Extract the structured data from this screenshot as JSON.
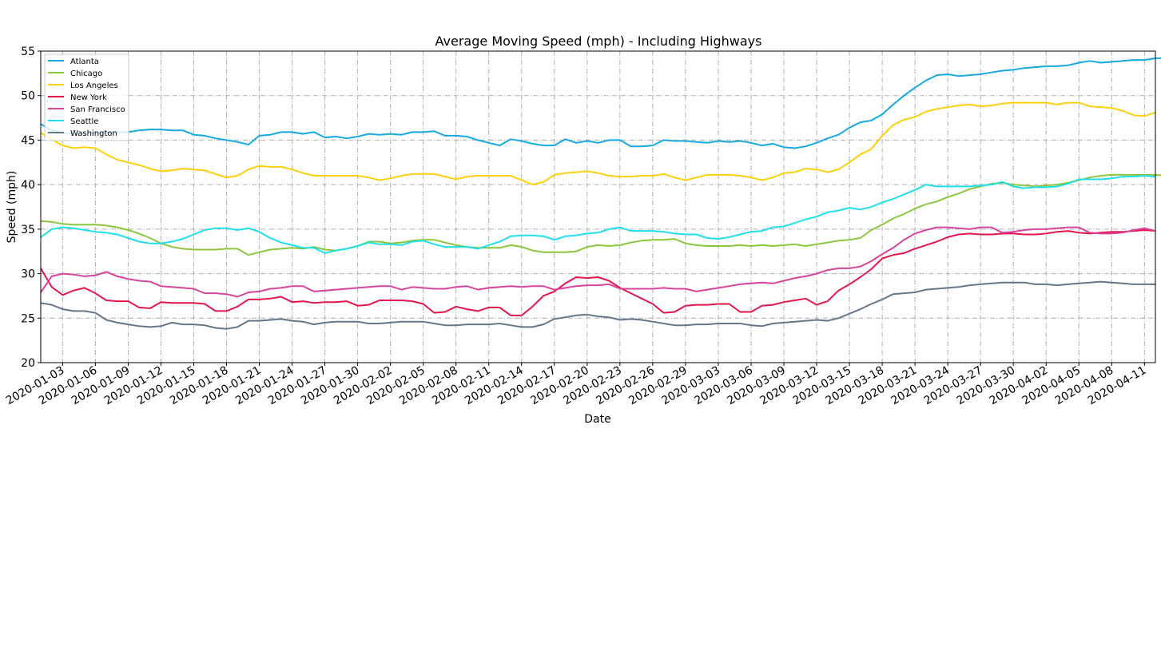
{
  "chart_data": {
    "type": "line",
    "title": "Average Moving Speed (mph) - Including Highways",
    "xlabel": "Date",
    "ylabel": "Speed (mph)",
    "ylim": [
      20,
      55
    ],
    "yticks": [
      20,
      25,
      30,
      35,
      40,
      45,
      50,
      55
    ],
    "xlim": [
      "2020-01-01",
      "2020-04-12"
    ],
    "xtick_labels": [
      "2020-01-03",
      "2020-01-06",
      "2020-01-09",
      "2020-01-12",
      "2020-01-15",
      "2020-01-18",
      "2020-01-21",
      "2020-01-24",
      "2020-01-27",
      "2020-01-30",
      "2020-02-02",
      "2020-02-05",
      "2020-02-08",
      "2020-02-11",
      "2020-02-14",
      "2020-02-17",
      "2020-02-20",
      "2020-02-23",
      "2020-02-26",
      "2020-02-29",
      "2020-03-03",
      "2020-03-06",
      "2020-03-09",
      "2020-03-12",
      "2020-03-15",
      "2020-03-18",
      "2020-03-21",
      "2020-03-24",
      "2020-03-27",
      "2020-03-30",
      "2020-04-02",
      "2020-04-05",
      "2020-04-08",
      "2020-04-11"
    ],
    "grid": true,
    "legend_position": "upper left",
    "x_start": "2020-01-01",
    "x_step_days": 1,
    "series": [
      {
        "name": "Atlanta",
        "color": "#16a9e2",
        "values": [
          46.8,
          46.1,
          45.8,
          45.7,
          45.7,
          45.8,
          45.8,
          45.9,
          45.9,
          46.1,
          46.2,
          46.2,
          46.1,
          46.1,
          45.6,
          45.5,
          45.2,
          45.0,
          44.8,
          44.5,
          45.5,
          45.6,
          45.9,
          45.9,
          45.7,
          45.9,
          45.3,
          45.4,
          45.2,
          45.4,
          45.7,
          45.6,
          45.7,
          45.6,
          45.9,
          45.9,
          46.0,
          45.5,
          45.5,
          45.4,
          45.0,
          44.7,
          44.4,
          45.1,
          44.9,
          44.6,
          44.4,
          44.4,
          45.1,
          44.7,
          44.9,
          44.7,
          45.0,
          45.0,
          44.3,
          44.3,
          44.4,
          45.0,
          44.9,
          44.9,
          44.8,
          44.7,
          44.9,
          44.8,
          44.9,
          44.7,
          44.4,
          44.6,
          44.2,
          44.1,
          44.3,
          44.7,
          45.2,
          45.6,
          46.4,
          47.0,
          47.2,
          47.9,
          49.0,
          50.0,
          50.9,
          51.7,
          52.3,
          52.4,
          52.2,
          52.3,
          52.4,
          52.6,
          52.8,
          52.9,
          53.1,
          53.2,
          53.3,
          53.3,
          53.4,
          53.7,
          53.9,
          53.7,
          53.8,
          53.9,
          54.0,
          54.0,
          54.2,
          54.2,
          53.9
        ]
      },
      {
        "name": "Chicago",
        "color": "#8cc63e",
        "values": [
          35.9,
          35.8,
          35.6,
          35.5,
          35.5,
          35.5,
          35.4,
          35.2,
          34.9,
          34.5,
          34.0,
          33.4,
          33.0,
          32.8,
          32.7,
          32.7,
          32.7,
          32.8,
          32.8,
          32.1,
          32.4,
          32.7,
          32.8,
          32.9,
          32.8,
          33.0,
          32.7,
          32.6,
          32.8,
          33.1,
          33.6,
          33.6,
          33.4,
          33.5,
          33.7,
          33.8,
          33.8,
          33.5,
          33.2,
          33.0,
          32.9,
          32.9,
          32.9,
          33.2,
          33.0,
          32.6,
          32.4,
          32.4,
          32.4,
          32.5,
          33.0,
          33.2,
          33.1,
          33.2,
          33.5,
          33.7,
          33.8,
          33.8,
          33.9,
          33.4,
          33.2,
          33.1,
          33.1,
          33.1,
          33.2,
          33.1,
          33.2,
          33.1,
          33.2,
          33.3,
          33.1,
          33.3,
          33.5,
          33.7,
          33.8,
          34.0,
          34.9,
          35.5,
          36.2,
          36.7,
          37.3,
          37.8,
          38.1,
          38.6,
          39.0,
          39.5,
          39.8,
          40.1,
          40.2,
          40.0,
          39.9,
          39.8,
          39.9,
          40.0,
          40.2,
          40.5,
          40.8,
          41.0,
          41.1,
          41.1,
          41.1,
          41.1,
          41.1,
          41.0,
          41.1
        ]
      },
      {
        "name": "Los Angeles",
        "color": "#fbd10d",
        "values": [
          45.8,
          45.1,
          44.4,
          44.1,
          44.2,
          44.1,
          43.4,
          42.8,
          42.5,
          42.2,
          41.8,
          41.5,
          41.6,
          41.8,
          41.7,
          41.6,
          41.2,
          40.8,
          41.0,
          41.7,
          42.1,
          42.0,
          42.0,
          41.7,
          41.3,
          41.0,
          41.0,
          41.0,
          41.0,
          41.0,
          40.8,
          40.5,
          40.7,
          41.0,
          41.2,
          41.2,
          41.2,
          40.9,
          40.6,
          40.9,
          41.0,
          41.0,
          41.0,
          41.0,
          40.5,
          40.0,
          40.3,
          41.1,
          41.3,
          41.4,
          41.5,
          41.3,
          41.0,
          40.9,
          40.9,
          41.0,
          41.0,
          41.2,
          40.8,
          40.5,
          40.8,
          41.1,
          41.1,
          41.1,
          41.0,
          40.8,
          40.5,
          40.8,
          41.3,
          41.4,
          41.8,
          41.7,
          41.4,
          41.7,
          42.5,
          43.4,
          44.0,
          45.5,
          46.7,
          47.3,
          47.6,
          48.2,
          48.5,
          48.7,
          48.9,
          49.0,
          48.8,
          48.9,
          49.1,
          49.2,
          49.2,
          49.2,
          49.2,
          49.0,
          49.2,
          49.2,
          48.8,
          48.7,
          48.6,
          48.3,
          47.8,
          47.7,
          48.1
        ]
      },
      {
        "name": "New York",
        "color": "#e4164d",
        "values": [
          30.6,
          28.5,
          27.6,
          28.1,
          28.4,
          27.8,
          27.0,
          26.9,
          26.9,
          26.2,
          26.1,
          26.8,
          26.7,
          26.7,
          26.7,
          26.6,
          25.8,
          25.8,
          26.3,
          27.1,
          27.1,
          27.2,
          27.4,
          26.8,
          26.9,
          26.7,
          26.8,
          26.8,
          26.9,
          26.4,
          26.5,
          27.0,
          27.0,
          27.0,
          26.9,
          26.6,
          25.6,
          25.7,
          26.3,
          26.0,
          25.8,
          26.2,
          26.2,
          25.3,
          25.3,
          26.3,
          27.5,
          28.0,
          28.9,
          29.6,
          29.5,
          29.6,
          29.2,
          28.4,
          27.8,
          27.2,
          26.6,
          25.6,
          25.7,
          26.4,
          26.5,
          26.5,
          26.6,
          26.6,
          25.7,
          25.7,
          26.4,
          26.5,
          26.8,
          27.0,
          27.2,
          26.5,
          26.9,
          28.1,
          28.8,
          29.6,
          30.5,
          31.7,
          32.1,
          32.3,
          32.8,
          33.2,
          33.6,
          34.1,
          34.4,
          34.5,
          34.4,
          34.4,
          34.5,
          34.5,
          34.4,
          34.4,
          34.5,
          34.7,
          34.8,
          34.6,
          34.5,
          34.6,
          34.7,
          34.7,
          34.8,
          34.9,
          34.8
        ]
      },
      {
        "name": "San Francisco",
        "color": "#d8449b",
        "values": [
          27.9,
          29.7,
          30.0,
          29.9,
          29.7,
          29.8,
          30.2,
          29.7,
          29.4,
          29.2,
          29.1,
          28.6,
          28.5,
          28.4,
          28.3,
          27.8,
          27.8,
          27.7,
          27.4,
          27.9,
          28.0,
          28.3,
          28.4,
          28.6,
          28.6,
          28.0,
          28.1,
          28.2,
          28.3,
          28.4,
          28.5,
          28.6,
          28.6,
          28.2,
          28.5,
          28.4,
          28.3,
          28.3,
          28.5,
          28.6,
          28.2,
          28.4,
          28.5,
          28.6,
          28.5,
          28.6,
          28.6,
          28.2,
          28.4,
          28.6,
          28.7,
          28.7,
          28.8,
          28.3,
          28.3,
          28.3,
          28.3,
          28.4,
          28.3,
          28.3,
          28.0,
          28.2,
          28.4,
          28.6,
          28.8,
          28.9,
          29.0,
          28.9,
          29.2,
          29.5,
          29.7,
          30.0,
          30.4,
          30.6,
          30.6,
          30.8,
          31.4,
          32.2,
          32.9,
          33.8,
          34.5,
          34.9,
          35.2,
          35.2,
          35.1,
          35.0,
          35.2,
          35.2,
          34.6,
          34.7,
          34.9,
          35.0,
          35.0,
          35.1,
          35.2,
          35.2,
          34.6,
          34.5,
          34.5,
          34.6,
          34.9,
          35.1,
          34.8
        ]
      },
      {
        "name": "Seattle",
        "color": "#1fe0ea",
        "values": [
          34.1,
          35.0,
          35.2,
          35.1,
          34.9,
          34.7,
          34.6,
          34.4,
          34.0,
          33.6,
          33.4,
          33.4,
          33.6,
          33.9,
          34.4,
          34.9,
          35.1,
          35.1,
          34.9,
          35.1,
          34.7,
          34.0,
          33.5,
          33.2,
          32.9,
          32.9,
          32.3,
          32.6,
          32.8,
          33.1,
          33.5,
          33.3,
          33.3,
          33.2,
          33.6,
          33.7,
          33.3,
          33.0,
          33.0,
          33.0,
          32.8,
          33.2,
          33.6,
          34.2,
          34.3,
          34.3,
          34.2,
          33.8,
          34.2,
          34.3,
          34.5,
          34.6,
          35.0,
          35.2,
          34.8,
          34.8,
          34.8,
          34.7,
          34.5,
          34.4,
          34.4,
          34.0,
          33.9,
          34.1,
          34.4,
          34.7,
          34.8,
          35.2,
          35.3,
          35.7,
          36.1,
          36.4,
          36.9,
          37.1,
          37.4,
          37.2,
          37.5,
          38.0,
          38.4,
          38.9,
          39.4,
          40.0,
          39.8,
          39.8,
          39.8,
          39.8,
          39.9,
          40.0,
          40.3,
          39.8,
          39.6,
          39.7,
          39.7,
          39.8,
          40.1,
          40.6,
          40.6,
          40.6,
          40.7,
          40.9,
          40.9,
          41.0,
          40.9
        ]
      },
      {
        "name": "Washington",
        "color": "#66768a",
        "values": [
          26.7,
          26.5,
          26.0,
          25.8,
          25.8,
          25.6,
          24.8,
          24.5,
          24.3,
          24.1,
          24.0,
          24.1,
          24.5,
          24.3,
          24.3,
          24.2,
          23.9,
          23.8,
          24.0,
          24.7,
          24.7,
          24.8,
          24.9,
          24.7,
          24.6,
          24.3,
          24.5,
          24.6,
          24.6,
          24.6,
          24.4,
          24.4,
          24.5,
          24.6,
          24.6,
          24.6,
          24.4,
          24.2,
          24.2,
          24.3,
          24.3,
          24.3,
          24.4,
          24.2,
          24.0,
          24.0,
          24.3,
          24.9,
          25.1,
          25.3,
          25.4,
          25.2,
          25.1,
          24.8,
          24.9,
          24.8,
          24.6,
          24.4,
          24.2,
          24.2,
          24.3,
          24.3,
          24.4,
          24.4,
          24.4,
          24.2,
          24.1,
          24.4,
          24.5,
          24.6,
          24.7,
          24.8,
          24.7,
          25.0,
          25.5,
          26.0,
          26.6,
          27.1,
          27.7,
          27.8,
          27.9,
          28.2,
          28.3,
          28.4,
          28.5,
          28.7,
          28.8,
          28.9,
          29.0,
          29.0,
          29.0,
          28.8,
          28.8,
          28.7,
          28.8,
          28.9,
          29.0,
          29.1,
          29.0,
          28.9,
          28.8,
          28.8,
          28.8
        ]
      }
    ]
  },
  "chart": {
    "title": "Average Moving Speed (mph) - Including Highways",
    "xlabel": "Date",
    "ylabel": "Speed (mph)"
  }
}
